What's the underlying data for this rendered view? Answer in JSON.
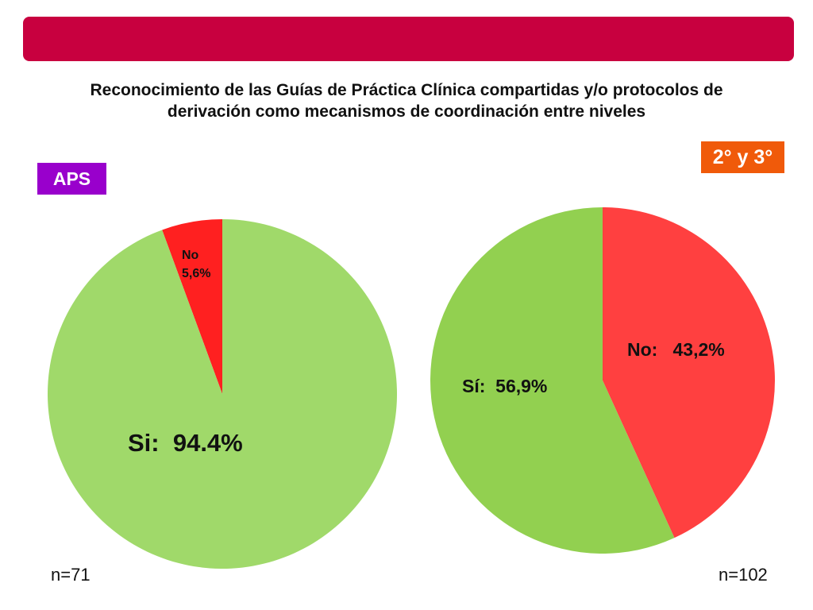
{
  "title_lines": [
    "Reconocimiento de las Guías de Práctica Clínica compartidas y/o protocolos de",
    "derivación como mecanismos de coordinación entre niveles"
  ],
  "colors": {
    "top_bar": "#c8003f",
    "aps_badge": "#9900cc",
    "level23_badge": "#f05a0a",
    "si": "#a0d96a",
    "si_right": "#92d050",
    "no": "#ff2020",
    "no_right": "#ff4040"
  },
  "chart_data": [
    {
      "type": "pie",
      "group_label": "APS",
      "sample_size": "n=71",
      "slices": [
        {
          "name": "No",
          "value": 5.6,
          "label_line1": "No",
          "label_line2": "5,6%"
        },
        {
          "name": "Si",
          "value": 94.4,
          "label": "Si:  94.4%"
        }
      ]
    },
    {
      "type": "pie",
      "group_label": "2° y 3°",
      "sample_size": "n=102",
      "slices": [
        {
          "name": "No",
          "value": 43.2,
          "label": "No:   43,2%"
        },
        {
          "name": "Sí",
          "value": 56.9,
          "label": "Sí:  56,9%"
        }
      ]
    }
  ]
}
